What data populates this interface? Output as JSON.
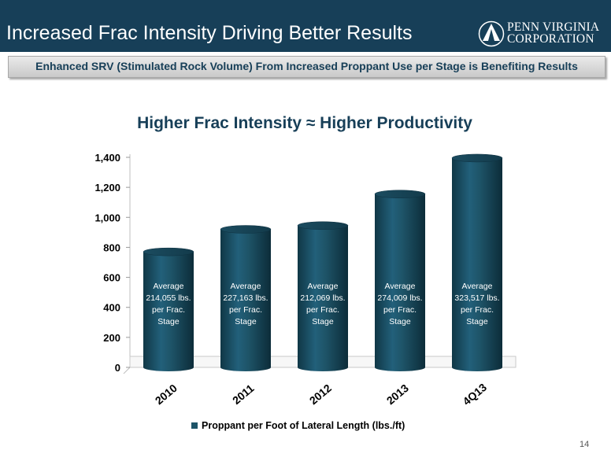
{
  "header": {
    "title": "Increased Frac Intensity Driving Better Results",
    "logo_line1": "PENN VIRGINIA",
    "logo_line2": "CORPORATION"
  },
  "subtitle": "Enhanced SRV (Stimulated Rock Volume) From Increased Proppant Use per Stage is Benefiting Results",
  "page_number": "14",
  "colors": {
    "header_bg": "#173f58",
    "bar": "#1e5468",
    "bar_label": "#ffffff"
  },
  "chart_data": {
    "type": "bar",
    "title": "Higher Frac Intensity ≈ Higher Productivity",
    "categories": [
      "2010",
      "2011",
      "2012",
      "2013",
      "4Q13"
    ],
    "series": [
      {
        "name": "Proppant per Foot of Lateral Length (lbs./ft)",
        "values": [
          770,
          920,
          945,
          1155,
          1395
        ]
      }
    ],
    "bar_annotations": [
      [
        "Average",
        "214,055 lbs.",
        "per Frac.",
        "Stage"
      ],
      [
        "Average",
        "227,163 lbs.",
        "per Frac.",
        "Stage"
      ],
      [
        "Average",
        "212,069 lbs.",
        "per Frac.",
        "Stage"
      ],
      [
        "Average",
        "274,009 lbs.",
        "per Frac.",
        "Stage"
      ],
      [
        "Average",
        "323,517 lbs.",
        "per Frac.",
        "Stage"
      ]
    ],
    "y_ticks": [
      "0",
      "200",
      "400",
      "600",
      "800",
      "1,000",
      "1,200",
      "1,400"
    ],
    "ylim": [
      0,
      1400
    ],
    "grid": false,
    "legend_position": "bottom",
    "chart_type_detail": "3D cylinder"
  }
}
